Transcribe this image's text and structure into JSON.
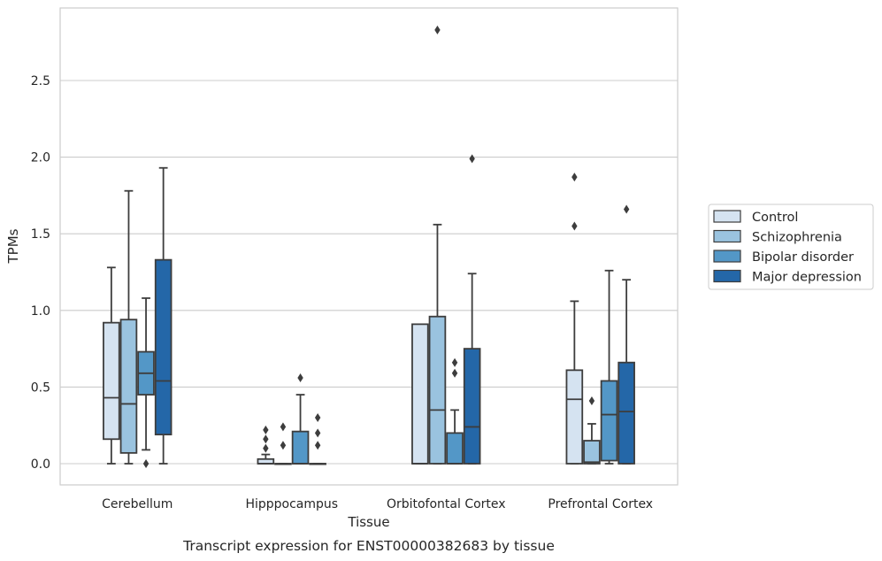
{
  "chart_data": {
    "type": "box",
    "title": "",
    "caption": "Transcript expression for ENST00000382683 by tissue",
    "xlabel": "Tissue",
    "ylabel": "TPMs",
    "ylim": [
      -0.14,
      2.97
    ],
    "yticks": [
      0.0,
      0.5,
      1.0,
      1.5,
      2.0,
      2.5
    ],
    "ytick_labels": [
      "0.0",
      "0.5",
      "1.0",
      "1.5",
      "2.0",
      "2.5"
    ],
    "grid": "horizontal",
    "legend_position": "right",
    "categories": [
      "Cerebellum",
      "Hipppocampus",
      "Orbitofontal Cortex",
      "Prefrontal Cortex"
    ],
    "series": [
      {
        "name": "Control",
        "color": "#d5e3f1",
        "boxes": [
          {
            "whisker_low": 0.0,
            "q1": 0.16,
            "median": 0.43,
            "q3": 0.92,
            "whisker_high": 1.28,
            "outliers": []
          },
          {
            "whisker_low": 0.0,
            "q1": 0.0,
            "median": 0.0,
            "q3": 0.03,
            "whisker_high": 0.06,
            "outliers": [
              0.1,
              0.16,
              0.22
            ]
          },
          {
            "whisker_low": 0.0,
            "q1": 0.0,
            "median": 0.0,
            "q3": 0.91,
            "whisker_high": 0.91,
            "outliers": []
          },
          {
            "whisker_low": 0.0,
            "q1": 0.0,
            "median": 0.42,
            "q3": 0.61,
            "whisker_high": 1.06,
            "outliers": [
              1.55,
              1.87
            ]
          }
        ]
      },
      {
        "name": "Schizophrenia",
        "color": "#9ac3df",
        "boxes": [
          {
            "whisker_low": 0.0,
            "q1": 0.07,
            "median": 0.39,
            "q3": 0.94,
            "whisker_high": 1.78,
            "outliers": []
          },
          {
            "whisker_low": 0.0,
            "q1": 0.0,
            "median": 0.0,
            "q3": 0.0,
            "whisker_high": 0.0,
            "outliers": [
              0.12,
              0.24
            ]
          },
          {
            "whisker_low": 0.0,
            "q1": 0.0,
            "median": 0.35,
            "q3": 0.96,
            "whisker_high": 1.56,
            "outliers": [
              2.83
            ]
          },
          {
            "whisker_low": 0.0,
            "q1": 0.0,
            "median": 0.01,
            "q3": 0.15,
            "whisker_high": 0.26,
            "outliers": [
              0.41
            ]
          }
        ]
      },
      {
        "name": "Bipolar disorder",
        "color": "#5397c7",
        "boxes": [
          {
            "whisker_low": 0.09,
            "q1": 0.45,
            "median": 0.59,
            "q3": 0.73,
            "whisker_high": 1.08,
            "outliers": [
              0.0
            ]
          },
          {
            "whisker_low": 0.0,
            "q1": 0.0,
            "median": 0.0,
            "q3": 0.21,
            "whisker_high": 0.45,
            "outliers": [
              0.56
            ]
          },
          {
            "whisker_low": 0.0,
            "q1": 0.0,
            "median": 0.0,
            "q3": 0.2,
            "whisker_high": 0.35,
            "outliers": [
              0.59,
              0.66
            ]
          },
          {
            "whisker_low": 0.0,
            "q1": 0.02,
            "median": 0.32,
            "q3": 0.54,
            "whisker_high": 1.26,
            "outliers": []
          }
        ]
      },
      {
        "name": "Major depression",
        "color": "#2467a8",
        "boxes": [
          {
            "whisker_low": 0.0,
            "q1": 0.19,
            "median": 0.54,
            "q3": 1.33,
            "whisker_high": 1.93,
            "outliers": []
          },
          {
            "whisker_low": 0.0,
            "q1": 0.0,
            "median": 0.0,
            "q3": 0.0,
            "whisker_high": 0.0,
            "outliers": [
              0.12,
              0.2,
              0.3
            ]
          },
          {
            "whisker_low": 0.0,
            "q1": 0.0,
            "median": 0.24,
            "q3": 0.75,
            "whisker_high": 1.24,
            "outliers": [
              1.99
            ]
          },
          {
            "whisker_low": 0.0,
            "q1": 0.0,
            "median": 0.34,
            "q3": 0.66,
            "whisker_high": 1.2,
            "outliers": [
              1.66
            ]
          }
        ]
      }
    ]
  }
}
